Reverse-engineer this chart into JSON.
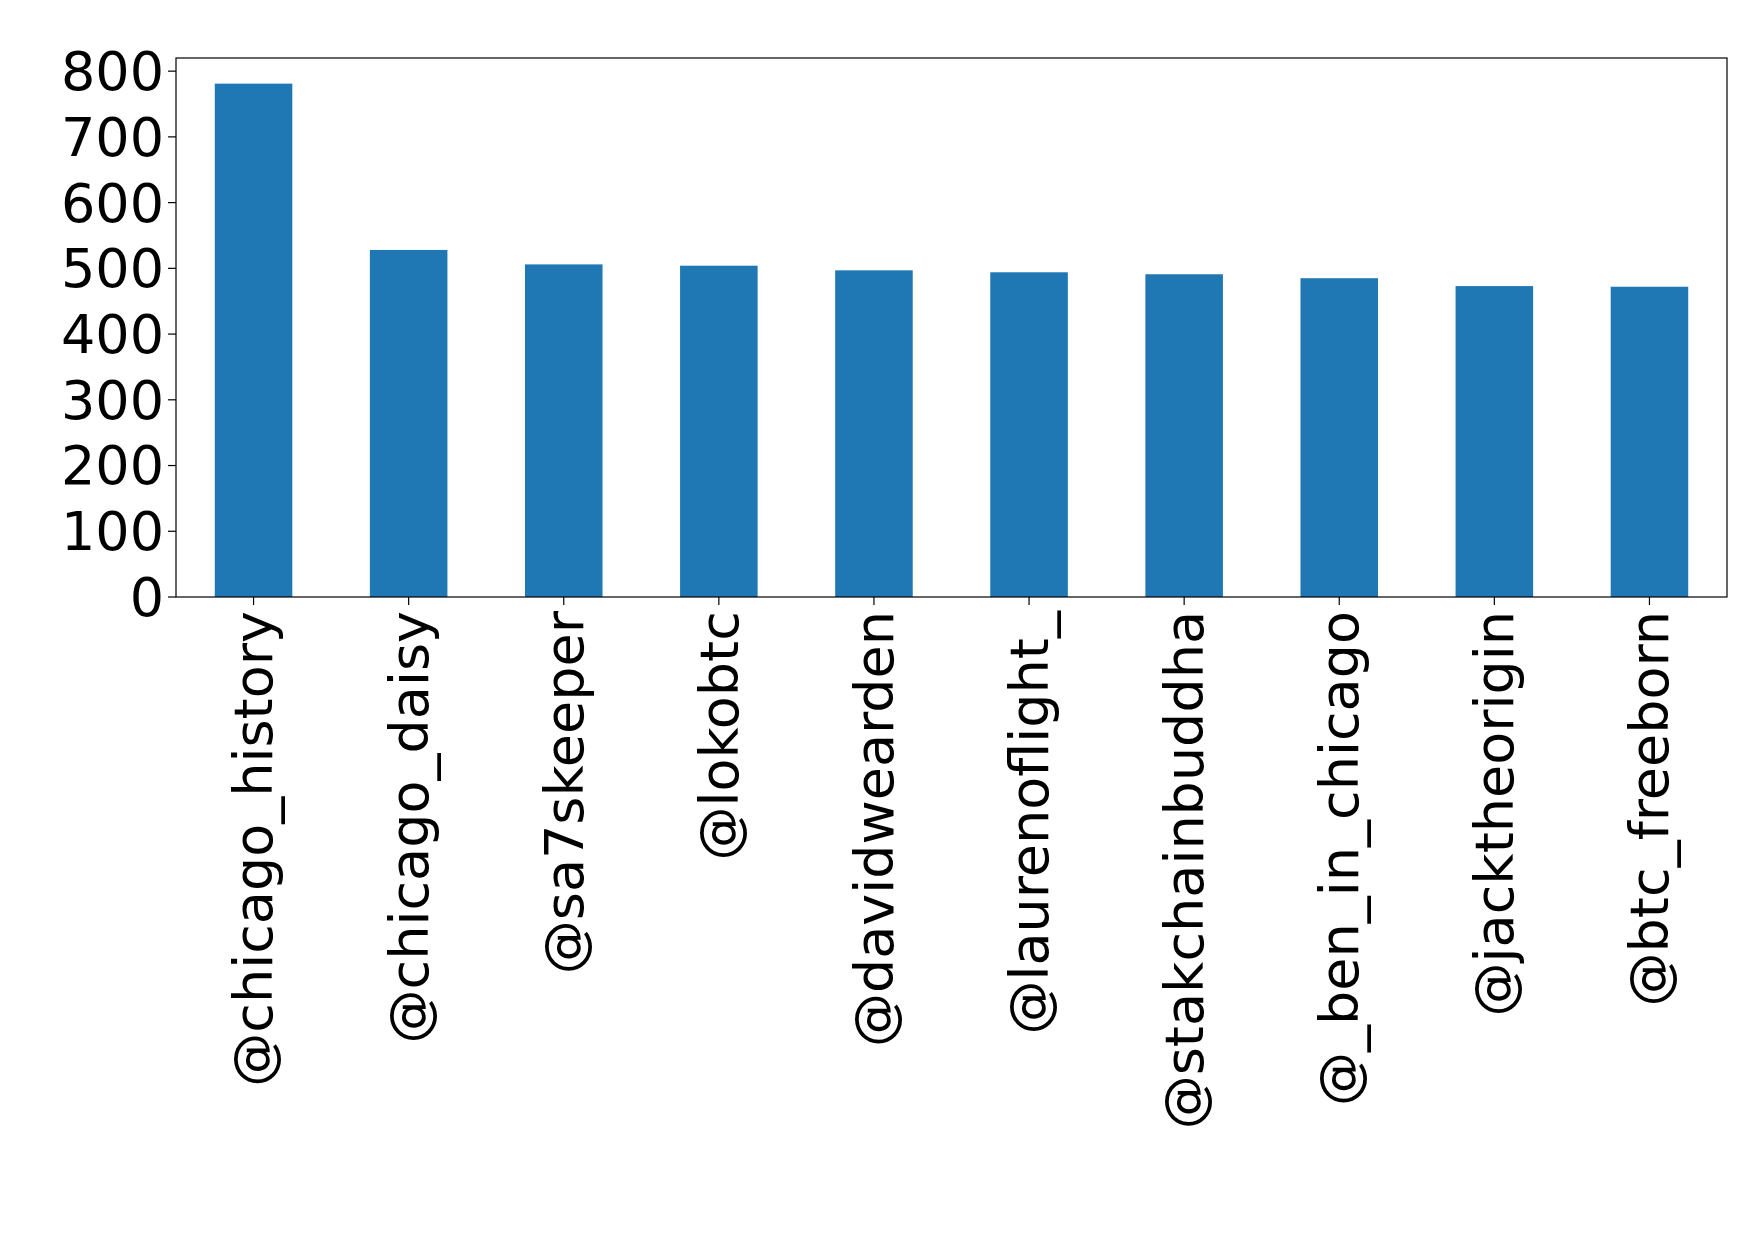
{
  "chart_data": {
    "type": "bar",
    "categories": [
      "@chicago_history",
      "@chicago_daisy",
      "@sa7skeeper",
      "@lokobtc",
      "@davidwearden",
      "@laurenoflight_",
      "@stakchainbuddha",
      "@_ben_in_chicago",
      "@jacktheorigin",
      "@btc_freeborn"
    ],
    "values": [
      781,
      528,
      506,
      504,
      497,
      494,
      491,
      485,
      473,
      472
    ],
    "color": "#1f77b4",
    "ylim": [
      0,
      820
    ],
    "yticks": [
      0,
      100,
      200,
      300,
      400,
      500,
      600,
      700,
      800
    ],
    "grid": false
  }
}
